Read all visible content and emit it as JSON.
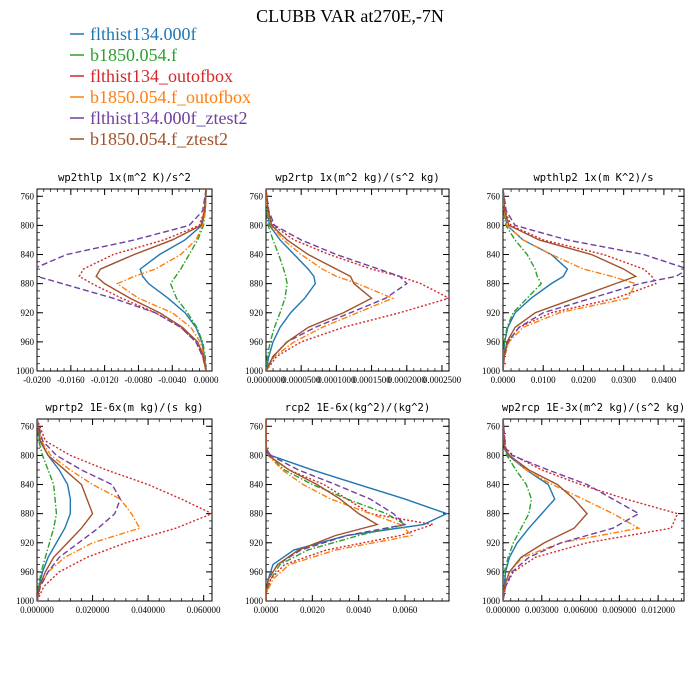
{
  "figure": {
    "title": "CLUBB VAR at270E,-7N"
  },
  "legend": {
    "placement": "top-left",
    "entries": [
      {
        "label": "flthist134.000f",
        "color": "#1f77b4",
        "dash": "solid"
      },
      {
        "label": "b1850.054.f",
        "color": "#2ca02c",
        "dash": "dashdot"
      },
      {
        "label": "flthist134_outofbox",
        "color": "#d62728",
        "dash": "dotted"
      },
      {
        "label": "b1850.054.f_outofbox",
        "color": "#ff7f0e",
        "dash": "dashdot"
      },
      {
        "label": "flthist134.000f_ztest2",
        "color": "#7040a0",
        "dash": "dashed"
      },
      {
        "label": "b1850.054.f_ztest2",
        "color": "#a0522d",
        "dash": "solid"
      }
    ]
  },
  "chart_data": [
    {
      "type": "line",
      "title": "wp2thlp  1x(m^2 K)/s^2",
      "ylim": [
        1000,
        750
      ],
      "xlim": [
        -0.02,
        0.0007
      ],
      "yticks": [
        "760",
        "800",
        "840",
        "880",
        "920",
        "960",
        "1000"
      ],
      "xticks": [
        "-0.0200",
        "-0.0160",
        "-0.0120",
        "-0.0080",
        "-0.0040",
        "0.0000"
      ],
      "xtick_values": [
        -0.02,
        -0.016,
        -0.012,
        -0.008,
        -0.004,
        0.0
      ],
      "y": [
        750,
        780,
        800,
        820,
        840,
        860,
        870,
        880,
        900,
        920,
        940,
        960,
        980,
        1000
      ],
      "series": [
        {
          "values": [
            0,
            -0.0001,
            -0.0005,
            -0.0025,
            -0.0055,
            -0.0078,
            -0.0075,
            -0.0068,
            -0.0045,
            -0.0025,
            -0.0012,
            -0.0005,
            -0.0002,
            0
          ]
        },
        {
          "values": [
            0,
            -0.0001,
            -0.0003,
            -0.001,
            -0.002,
            -0.003,
            -0.0036,
            -0.0042,
            -0.0035,
            -0.0022,
            -0.0011,
            -0.0004,
            -0.0001,
            0
          ]
        },
        {
          "values": [
            0,
            -0.0002,
            -0.0008,
            -0.005,
            -0.011,
            -0.0145,
            -0.015,
            -0.0135,
            -0.01,
            -0.006,
            -0.003,
            -0.0012,
            -0.0004,
            0
          ]
        },
        {
          "values": [
            0,
            -0.0001,
            -0.0004,
            -0.0012,
            -0.003,
            -0.006,
            -0.0085,
            -0.0105,
            -0.008,
            -0.004,
            -0.0018,
            -0.0007,
            -0.0002,
            0
          ]
        },
        {
          "values": [
            0,
            -0.0004,
            -0.002,
            -0.0085,
            -0.0165,
            -0.0205,
            -0.02,
            -0.017,
            -0.011,
            -0.006,
            -0.003,
            -0.0012,
            -0.0004,
            0
          ]
        },
        {
          "values": [
            0,
            -0.0002,
            -0.0006,
            -0.004,
            -0.0085,
            -0.0125,
            -0.013,
            -0.012,
            -0.009,
            -0.0055,
            -0.0028,
            -0.001,
            -0.0003,
            0
          ]
        }
      ]
    },
    {
      "type": "line",
      "title": "wp2rtp  1x(m^2 kg)/(s^2 kg)",
      "ylim": [
        1000,
        750
      ],
      "xlim": [
        0,
        0.00026
      ],
      "yticks": [
        "760",
        "800",
        "840",
        "880",
        "920",
        "960",
        "1000"
      ],
      "xticks": [
        "0.0000000",
        "0.0000500",
        "0.0001000",
        "0.0001500",
        "0.0002000",
        "0.0002500"
      ],
      "xtick_values": [
        0,
        5e-05,
        0.0001,
        0.00015,
        0.0002,
        0.00025
      ],
      "y": [
        750,
        780,
        800,
        820,
        840,
        860,
        870,
        880,
        900,
        920,
        940,
        960,
        980,
        1000
      ],
      "series": [
        {
          "values": [
            0,
            2e-06,
            5e-06,
            2e-05,
            4e-05,
            6e-05,
            6.8e-05,
            7e-05,
            5.5e-05,
            3.5e-05,
            2e-05,
            1e-05,
            4e-06,
            0
          ]
        },
        {
          "values": [
            0,
            1e-06,
            3e-06,
            1e-05,
            1.8e-05,
            2.5e-05,
            2.8e-05,
            3e-05,
            2.7e-05,
            2e-05,
            1.2e-05,
            6e-06,
            2e-06,
            0
          ]
        },
        {
          "values": [
            0,
            3e-06,
            1e-05,
            4e-05,
            9e-05,
            0.00015,
            0.00019,
            0.00022,
            0.00026,
            0.00019,
            0.00011,
            5e-05,
            1.5e-05,
            0
          ]
        },
        {
          "values": [
            0,
            2e-06,
            7e-06,
            2.5e-05,
            5e-05,
            8e-05,
            0.0001,
            0.00013,
            0.00018,
            0.00013,
            8e-05,
            4e-05,
            1.2e-05,
            0
          ]
        },
        {
          "values": [
            0,
            4e-06,
            1.2e-05,
            5e-05,
            0.0001,
            0.00016,
            0.00019,
            0.0002,
            0.00017,
            0.00012,
            7e-05,
            3e-05,
            1e-05,
            0
          ]
        },
        {
          "values": [
            0,
            3e-06,
            8e-06,
            3e-05,
            6e-05,
            0.0001,
            0.00012,
            0.000125,
            0.00015,
            0.00011,
            6e-05,
            3e-05,
            1e-05,
            0
          ]
        }
      ]
    },
    {
      "type": "line",
      "title": "wpthlp2  1x(m K^2)/s",
      "ylim": [
        1000,
        750
      ],
      "xlim": [
        0,
        0.045
      ],
      "yticks": [
        "760",
        "800",
        "840",
        "880",
        "920",
        "960",
        "1000"
      ],
      "xticks": [
        "0.0000",
        "0.0100",
        "0.0200",
        "0.0300",
        "0.0400"
      ],
      "xtick_values": [
        0,
        0.01,
        0.02,
        0.03,
        0.04
      ],
      "y": [
        750,
        780,
        800,
        820,
        840,
        860,
        870,
        880,
        900,
        920,
        940,
        960,
        980,
        1000
      ],
      "series": [
        {
          "values": [
            0,
            0.0003,
            0.001,
            0.005,
            0.012,
            0.016,
            0.015,
            0.012,
            0.007,
            0.003,
            0.0012,
            0.0004,
            0.0001,
            0
          ]
        },
        {
          "values": [
            0,
            0.0002,
            0.0007,
            0.003,
            0.006,
            0.008,
            0.0085,
            0.0095,
            0.006,
            0.0025,
            0.001,
            0.0003,
            0.0001,
            0
          ]
        },
        {
          "values": [
            0,
            0.0005,
            0.002,
            0.01,
            0.025,
            0.035,
            0.037,
            0.038,
            0.028,
            0.012,
            0.004,
            0.0012,
            0.0003,
            0
          ]
        },
        {
          "values": [
            0,
            0.0003,
            0.001,
            0.005,
            0.012,
            0.02,
            0.027,
            0.033,
            0.031,
            0.014,
            0.005,
            0.0015,
            0.0004,
            0
          ]
        },
        {
          "values": [
            0,
            0.0008,
            0.003,
            0.016,
            0.035,
            0.046,
            0.043,
            0.034,
            0.022,
            0.01,
            0.004,
            0.0012,
            0.0003,
            0
          ]
        },
        {
          "values": [
            0,
            0.0004,
            0.0015,
            0.009,
            0.022,
            0.03,
            0.033,
            0.028,
            0.018,
            0.008,
            0.003,
            0.001,
            0.0002,
            0
          ]
        }
      ]
    },
    {
      "type": "line",
      "title": "wprtp2  1E-6x(m kg)/(s kg)",
      "ylim": [
        1000,
        750
      ],
      "xlim": [
        0,
        0.063
      ],
      "yticks": [
        "760",
        "800",
        "840",
        "880",
        "920",
        "960",
        "1000"
      ],
      "xticks": [
        "0.000000",
        "0.020000",
        "0.040000",
        "0.060000"
      ],
      "xtick_values": [
        0,
        0.02,
        0.04,
        0.06
      ],
      "y": [
        750,
        780,
        800,
        820,
        840,
        860,
        880,
        900,
        920,
        940,
        960,
        980,
        1000
      ],
      "series": [
        {
          "values": [
            0,
            0.001,
            0.004,
            0.008,
            0.011,
            0.012,
            0.012,
            0.01,
            0.007,
            0.004,
            0.002,
            0.0007,
            0
          ]
        },
        {
          "values": [
            0,
            0.0006,
            0.002,
            0.004,
            0.006,
            0.0065,
            0.007,
            0.006,
            0.0045,
            0.003,
            0.0015,
            0.0005,
            0
          ]
        },
        {
          "values": [
            0,
            0.003,
            0.012,
            0.025,
            0.04,
            0.052,
            0.063,
            0.05,
            0.032,
            0.018,
            0.008,
            0.0025,
            0
          ]
        },
        {
          "values": [
            0,
            0.0015,
            0.005,
            0.012,
            0.02,
            0.03,
            0.034,
            0.037,
            0.02,
            0.01,
            0.004,
            0.0012,
            0
          ]
        },
        {
          "values": [
            0,
            0.002,
            0.007,
            0.016,
            0.027,
            0.03,
            0.028,
            0.022,
            0.015,
            0.008,
            0.004,
            0.0012,
            0
          ]
        },
        {
          "values": [
            0,
            0.0012,
            0.004,
            0.01,
            0.016,
            0.018,
            0.02,
            0.016,
            0.011,
            0.006,
            0.003,
            0.0009,
            0
          ]
        }
      ]
    },
    {
      "type": "line",
      "title": "rcp2  1E-6x(kg^2)/(kg^2)",
      "ylim": [
        1000,
        750
      ],
      "xlim": [
        0,
        0.0079
      ],
      "yticks": [
        "760",
        "800",
        "840",
        "880",
        "920",
        "960",
        "1000"
      ],
      "xticks": [
        "0.0000",
        "0.0020",
        "0.0040",
        "0.0060"
      ],
      "xtick_values": [
        0,
        0.002,
        0.004,
        0.006
      ],
      "y": [
        750,
        790,
        800,
        820,
        840,
        860,
        880,
        895,
        910,
        930,
        950,
        970,
        990,
        1000
      ],
      "series": [
        {
          "values": [
            0,
            0,
            0.0002,
            0.002,
            0.004,
            0.006,
            0.0078,
            0.0068,
            0.0035,
            0.0012,
            0.0003,
            0.0001,
            0,
            0
          ]
        },
        {
          "values": [
            0,
            0,
            0.0001,
            0.0008,
            0.002,
            0.0035,
            0.0052,
            0.006,
            0.004,
            0.0018,
            0.0006,
            0.0002,
            0,
            0
          ]
        },
        {
          "values": [
            0,
            0,
            0.0001,
            0.001,
            0.0025,
            0.0035,
            0.0045,
            0.0072,
            0.0058,
            0.0026,
            0.0008,
            0.0002,
            0,
            0
          ]
        },
        {
          "values": [
            0,
            0,
            0.0001,
            0.0007,
            0.0016,
            0.0028,
            0.0045,
            0.0058,
            0.0063,
            0.003,
            0.001,
            0.0003,
            0,
            0
          ]
        },
        {
          "values": [
            0,
            0,
            0.0002,
            0.0014,
            0.003,
            0.0045,
            0.0055,
            0.006,
            0.0035,
            0.0015,
            0.0005,
            0.0001,
            0,
            0
          ]
        },
        {
          "values": [
            0,
            0,
            0.0001,
            0.001,
            0.0022,
            0.0032,
            0.004,
            0.0048,
            0.003,
            0.0014,
            0.0005,
            0.0001,
            0,
            0
          ]
        }
      ]
    },
    {
      "type": "line",
      "title": "wp2rcp  1E-3x(m^2 kg)/(s^2 kg)",
      "ylim": [
        1000,
        750
      ],
      "xlim": [
        0,
        0.014
      ],
      "yticks": [
        "760",
        "800",
        "840",
        "880",
        "920",
        "960",
        "1000"
      ],
      "xticks": [
        "0.000000",
        "0.003000",
        "0.006000",
        "0.009000",
        "0.012000"
      ],
      "xtick_values": [
        0,
        0.003,
        0.006,
        0.009,
        0.012
      ],
      "y": [
        750,
        790,
        800,
        820,
        840,
        860,
        880,
        900,
        920,
        940,
        960,
        980,
        1000
      ],
      "series": [
        {
          "values": [
            0,
            0.0001,
            0.0004,
            0.0018,
            0.0035,
            0.004,
            0.003,
            0.002,
            0.0011,
            0.0005,
            0.0002,
            0.0001,
            0
          ]
        },
        {
          "values": [
            0,
            0.0001,
            0.0003,
            0.001,
            0.0018,
            0.0022,
            0.002,
            0.0014,
            0.0008,
            0.0004,
            0.0001,
            0,
            0
          ]
        },
        {
          "values": [
            0,
            0.0002,
            0.0008,
            0.003,
            0.006,
            0.0095,
            0.0135,
            0.013,
            0.0065,
            0.0025,
            0.0008,
            0.0002,
            0
          ]
        },
        {
          "values": [
            0,
            0.0001,
            0.0005,
            0.0018,
            0.0038,
            0.0062,
            0.0085,
            0.0105,
            0.0045,
            0.0015,
            0.0005,
            0.0001,
            0
          ]
        },
        {
          "values": [
            0,
            0.0002,
            0.0007,
            0.0035,
            0.0065,
            0.0085,
            0.0105,
            0.0085,
            0.0045,
            0.002,
            0.0007,
            0.0002,
            0
          ]
        },
        {
          "values": [
            0,
            0.0001,
            0.0005,
            0.002,
            0.0042,
            0.0055,
            0.0065,
            0.0055,
            0.0032,
            0.0014,
            0.0005,
            0.0001,
            0
          ]
        }
      ]
    }
  ]
}
